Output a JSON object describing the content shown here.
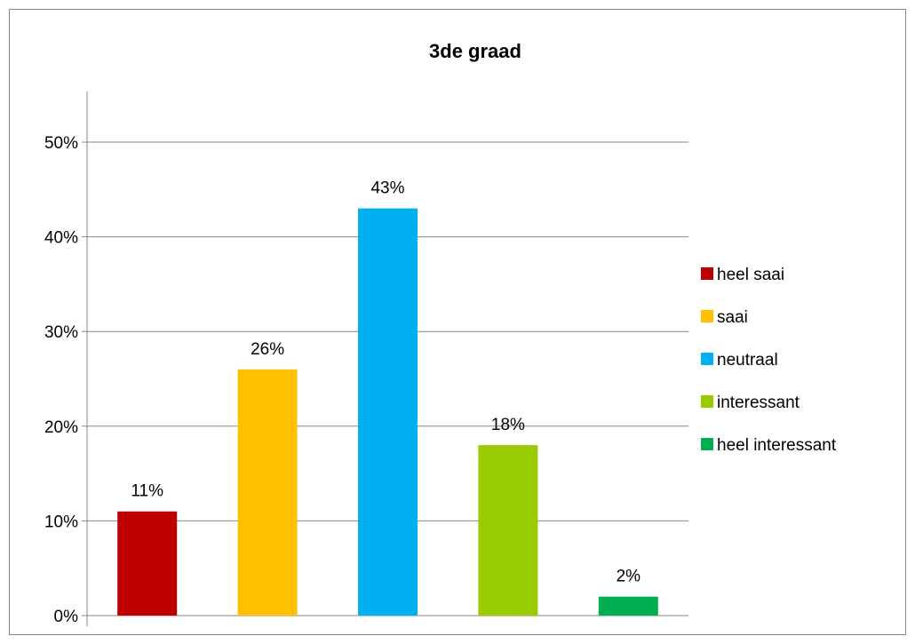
{
  "chart_data": {
    "type": "bar",
    "title": "3de graad",
    "xlabel": "",
    "ylabel": "",
    "categories": [
      "heel saai",
      "saai",
      "neutraal",
      "interessant",
      "heel interessant"
    ],
    "values": [
      11,
      26,
      43,
      18,
      2
    ],
    "data_labels": [
      "11%",
      "26%",
      "43%",
      "18%",
      "2%"
    ],
    "colors": [
      "#C00000",
      "#FFC000",
      "#00B0F0",
      "#99CC00",
      "#00B050"
    ],
    "ylim": [
      0,
      50
    ],
    "yticks": [
      0,
      10,
      20,
      30,
      40,
      50
    ],
    "ytick_labels": [
      "0%",
      "10%",
      "20%",
      "30%",
      "40%",
      "50%"
    ],
    "grid": true,
    "legend_position": "right"
  }
}
